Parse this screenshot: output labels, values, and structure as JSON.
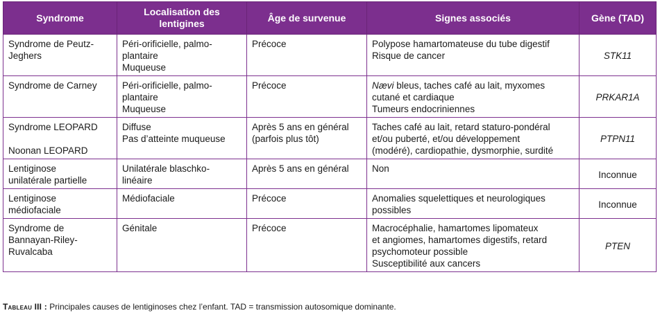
{
  "headers": {
    "syndrome": "Syndrome",
    "localisation_line1": "Localisation des",
    "localisation_line2": "lentigines",
    "age": "Âge de survenue",
    "signes": "Signes associés",
    "gene": "Gène (TAD)"
  },
  "rows": [
    {
      "syndrome": [
        "Syndrome de Peutz-",
        "Jeghers"
      ],
      "localisation": [
        "Péri-orificielle, palmo-",
        "plantaire",
        "Muqueuse"
      ],
      "age": [
        "Précoce"
      ],
      "signes": [
        "Polypose hamartomateuse du tube digestif",
        "Risque de cancer"
      ],
      "gene": "STK11"
    },
    {
      "syndrome": [
        "Syndrome de Carney"
      ],
      "localisation": [
        "Péri-orificielle, palmo-",
        "plantaire",
        "Muqueuse"
      ],
      "age": [
        "Précoce"
      ],
      "signes_italic": "Nævi",
      "signes": [
        " bleus, taches café au lait, myxomes",
        "cutané et cardiaque",
        "Tumeurs endocriniennes"
      ],
      "gene": "PRKAR1A"
    },
    {
      "syndrome": [
        "Syndrome LEOPARD",
        "Noonan LEOPARD"
      ],
      "localisation": [
        "Diffuse",
        "Pas d’atteinte muqueuse"
      ],
      "age": [
        "Après 5 ans en général",
        "(parfois plus tôt)"
      ],
      "signes": [
        "Taches café au lait, retard staturo-pondéral",
        "et/ou puberté, et/ou développement",
        "(modéré), cardiopathie, dysmorphie, surdité"
      ],
      "gene": "PTPN11"
    },
    {
      "syndrome": [
        "Lentiginose",
        "unilatérale partielle"
      ],
      "localisation": [
        "Unilatérale blaschko-",
        "linéaire"
      ],
      "age": [
        "Après 5 ans en général"
      ],
      "signes": [
        "Non"
      ],
      "gene": "Inconnue"
    },
    {
      "syndrome": [
        "Lentiginose",
        "médiofaciale"
      ],
      "localisation": [
        "Médiofaciale"
      ],
      "age": [
        "Précoce"
      ],
      "signes": [
        "Anomalies squelettiques et neurologiques",
        "possibles"
      ],
      "gene": "Inconnue"
    },
    {
      "syndrome": [
        "Syndrome de",
        "Bannayan-Riley-",
        "Ruvalcaba"
      ],
      "localisation": [
        "Génitale"
      ],
      "age": [
        "Précoce"
      ],
      "signes": [
        "Macrocéphalie, hamartomes lipomateux",
        "et angiomes, hamartomes digestifs, retard",
        "psychomoteur possible",
        "Susceptibilité aux cancers"
      ],
      "gene": "PTEN"
    }
  ],
  "caption": {
    "label": "Tableau III :",
    "text": " Principales causes de lentiginoses chez l’enfant. TAD = transmission autosomique dominante."
  },
  "colors": {
    "header_bg": "#7c2f8e",
    "header_text": "#ffffff",
    "border": "#7c2f8e"
  }
}
